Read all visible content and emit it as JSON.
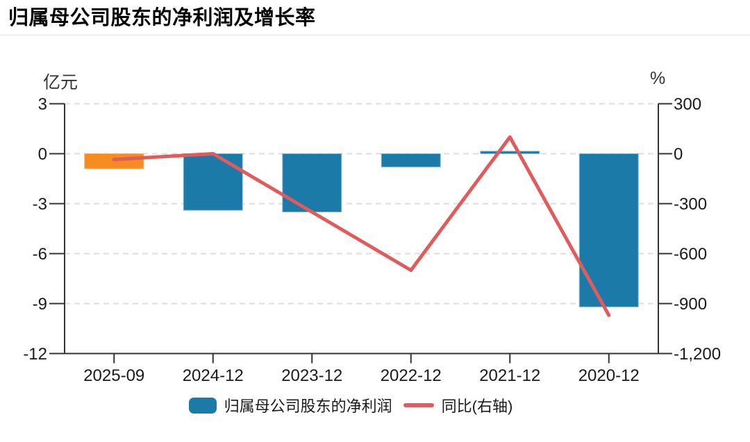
{
  "header": {
    "title": "归属母公司股东的净利润及增长率"
  },
  "colors": {
    "axis": "#333333",
    "tick_text": "#1a1a1a",
    "grid": "#dcdcdc",
    "divider": "#e2e2e2",
    "bar_blue": "#1b7aa8",
    "bar_highlight_orange": "#f68b1f",
    "line_red": "#e05c5c"
  },
  "chart_data": {
    "type": "bar+line",
    "title": "归属母公司股东的净利润及增长率",
    "categories": [
      "2025-09",
      "2024-12",
      "2023-12",
      "2022-12",
      "2021-12",
      "2020-12"
    ],
    "series": [
      {
        "name": "归属母公司股东的净利润",
        "type": "bar",
        "axis": "left",
        "unit": "亿元",
        "values": [
          -0.9,
          -3.4,
          -3.5,
          -0.8,
          0.15,
          -9.2
        ],
        "bar_colors": [
          "#f68b1f",
          "#1b7aa8",
          "#1b7aa8",
          "#1b7aa8",
          "#1b7aa8",
          "#1b7aa8"
        ],
        "bar_border_colors": [
          "#f9b268",
          "#85bcd6",
          "#85bcd6",
          "#85bcd6",
          "#85bcd6",
          "#85bcd6"
        ]
      },
      {
        "name": "同比(右轴)",
        "type": "line",
        "axis": "right",
        "unit": "%",
        "values": [
          -35,
          0,
          -350,
          -700,
          100,
          -970
        ],
        "color": "#e05c5c"
      }
    ],
    "left_axis": {
      "label": "亿元",
      "min": -12,
      "max": 3,
      "ticks": [
        3,
        0,
        -3,
        -6,
        -9,
        -12
      ],
      "tick_labels": [
        "3",
        "0",
        "-3",
        "-6",
        "-9",
        "-12"
      ]
    },
    "right_axis": {
      "label": "%",
      "min": -1200,
      "max": 300,
      "ticks": [
        300,
        0,
        -300,
        -600,
        -900,
        -1200
      ],
      "tick_labels": [
        "300",
        "0",
        "-300",
        "-600",
        "-900",
        "-1,200"
      ]
    },
    "grid": {
      "horizontal_dashed": true,
      "legend_position": "bottom-center"
    }
  },
  "legend": {
    "bar_label": "归属母公司股东的净利润",
    "line_label": "同比(右轴)"
  }
}
